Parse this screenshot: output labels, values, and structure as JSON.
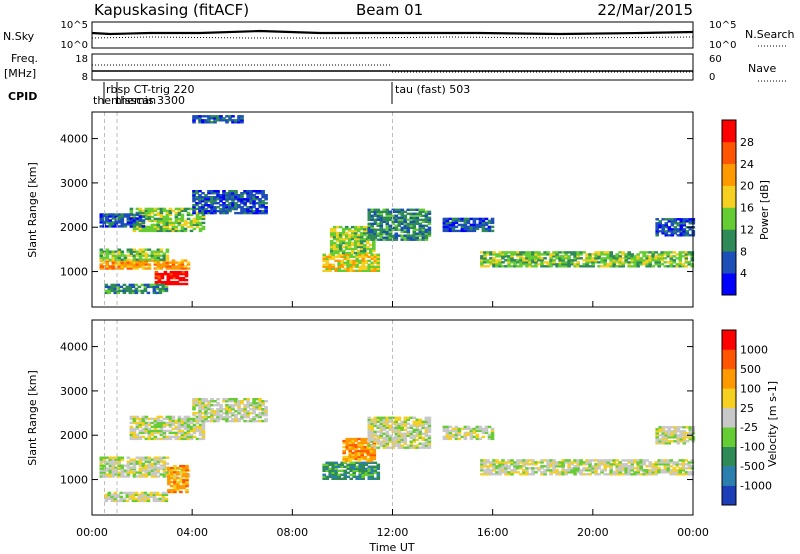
{
  "header": {
    "station": "Kapuskasing (fitACF)",
    "beam": "Beam 01",
    "date": "22/Mar/2015"
  },
  "noise_panel": {
    "left_label": "N.Sky",
    "right_label": "N.Search",
    "left_ticks": [
      "10^5",
      "10^0"
    ],
    "right_ticks": [
      "10^5",
      "10^0"
    ]
  },
  "freq_panel": {
    "left_label_line1": "Freq.",
    "left_label_line2": "[MHz]",
    "right_label": "Nave",
    "left_ticks": [
      "18",
      "8"
    ],
    "right_ticks": [
      "60",
      "0"
    ]
  },
  "cpid": {
    "label": "CPID",
    "events": [
      {
        "time_hours": 0.5,
        "text": "themisscan"
      },
      {
        "time_hours": 1.0,
        "text": "rbsp CT-trig 220"
      },
      {
        "time_hours": 1.0,
        "text": "themis 3300"
      },
      {
        "time_hours": 12.0,
        "text": "tau (fast) 503"
      }
    ]
  },
  "chart_data": [
    {
      "type": "heatmap",
      "panel": "power",
      "ylabel": "Slant Range [km]",
      "x_range_hours": [
        0,
        24
      ],
      "ylim": [
        200,
        4600
      ],
      "y_ticks": [
        1000,
        2000,
        3000,
        4000
      ],
      "colorbar": {
        "label": "Power [dB]",
        "ticks": [
          "4",
          "8",
          "12",
          "16",
          "20",
          "24",
          "28"
        ],
        "colors": [
          "#0000ff",
          "#1c4fb8",
          "#2e8b57",
          "#66cc33",
          "#f5d020",
          "#ff9900",
          "#ff5500",
          "#ff0000"
        ]
      },
      "regions": [
        {
          "t0": 0.3,
          "t1": 3.8,
          "r0": 1050,
          "r1": 1250,
          "level": 5
        },
        {
          "t0": 0.3,
          "t1": 3.0,
          "r0": 1250,
          "r1": 1500,
          "level": 3
        },
        {
          "t0": 2.5,
          "t1": 3.8,
          "r0": 700,
          "r1": 1000,
          "level": 7
        },
        {
          "t0": 0.5,
          "t1": 3.0,
          "r0": 500,
          "r1": 700,
          "level": 2
        },
        {
          "t0": 1.5,
          "t1": 4.5,
          "r0": 1900,
          "r1": 2400,
          "level": 3
        },
        {
          "t0": 0.3,
          "t1": 2.0,
          "r0": 2000,
          "r1": 2300,
          "level": 1
        },
        {
          "t0": 4.0,
          "t1": 7.0,
          "r0": 2300,
          "r1": 2800,
          "level": 1
        },
        {
          "t0": 9.2,
          "t1": 11.4,
          "r0": 1000,
          "r1": 1400,
          "level": 4
        },
        {
          "t0": 9.5,
          "t1": 11.2,
          "r0": 1400,
          "r1": 2000,
          "level": 3
        },
        {
          "t0": 11.0,
          "t1": 13.5,
          "r0": 1700,
          "r1": 2400,
          "level": 2
        },
        {
          "t0": 15.5,
          "t1": 24.0,
          "r0": 1100,
          "r1": 1450,
          "level": 3
        },
        {
          "t0": 14.0,
          "t1": 16.0,
          "r0": 1900,
          "r1": 2200,
          "level": 1
        },
        {
          "t0": 22.5,
          "t1": 24.0,
          "r0": 1800,
          "r1": 2200,
          "level": 1
        },
        {
          "t0": 4.0,
          "t1": 6.0,
          "r0": 4350,
          "r1": 4500,
          "level": 1
        }
      ]
    },
    {
      "type": "heatmap",
      "panel": "velocity",
      "ylabel": "Slant Range [km]",
      "x_range_hours": [
        0,
        24
      ],
      "ylim": [
        200,
        4600
      ],
      "y_ticks": [
        1000,
        2000,
        3000,
        4000
      ],
      "colorbar": {
        "label": "Velocity [m s-1]",
        "ticks": [
          "1000",
          "500",
          "100",
          "25",
          "-25",
          "-100",
          "-500",
          "-1000"
        ],
        "colors": [
          "#1c3fb8",
          "#2a7fae",
          "#2e8b57",
          "#66cc33",
          "#c8c8c8",
          "#f5d020",
          "#ff9900",
          "#ff5500",
          "#ff0000"
        ]
      },
      "regions": [
        {
          "t0": 0.3,
          "t1": 3.8,
          "r0": 1050,
          "r1": 1250,
          "level": 4
        },
        {
          "t0": 0.3,
          "t1": 3.0,
          "r0": 1250,
          "r1": 1500,
          "level": 4
        },
        {
          "t0": 3.0,
          "t1": 3.8,
          "r0": 700,
          "r1": 1300,
          "level": 6
        },
        {
          "t0": 0.5,
          "t1": 3.0,
          "r0": 500,
          "r1": 700,
          "level": 4
        },
        {
          "t0": 1.5,
          "t1": 4.5,
          "r0": 1900,
          "r1": 2400,
          "level": 4
        },
        {
          "t0": 4.0,
          "t1": 7.0,
          "r0": 2300,
          "r1": 2800,
          "level": 4
        },
        {
          "t0": 9.2,
          "t1": 11.4,
          "r0": 1000,
          "r1": 1400,
          "level": 2
        },
        {
          "t0": 10.0,
          "t1": 11.2,
          "r0": 1400,
          "r1": 1900,
          "level": 6
        },
        {
          "t0": 11.0,
          "t1": 13.5,
          "r0": 1700,
          "r1": 2400,
          "level": 4
        },
        {
          "t0": 15.5,
          "t1": 24.0,
          "r0": 1100,
          "r1": 1450,
          "level": 4
        },
        {
          "t0": 14.0,
          "t1": 16.0,
          "r0": 1900,
          "r1": 2200,
          "level": 4
        },
        {
          "t0": 22.5,
          "t1": 24.0,
          "r0": 1800,
          "r1": 2200,
          "level": 4
        }
      ]
    }
  ],
  "time_axis": {
    "ticks": [
      "00:00",
      "04:00",
      "08:00",
      "12:00",
      "16:00",
      "20:00",
      "00:00"
    ],
    "label": "Time UT"
  }
}
